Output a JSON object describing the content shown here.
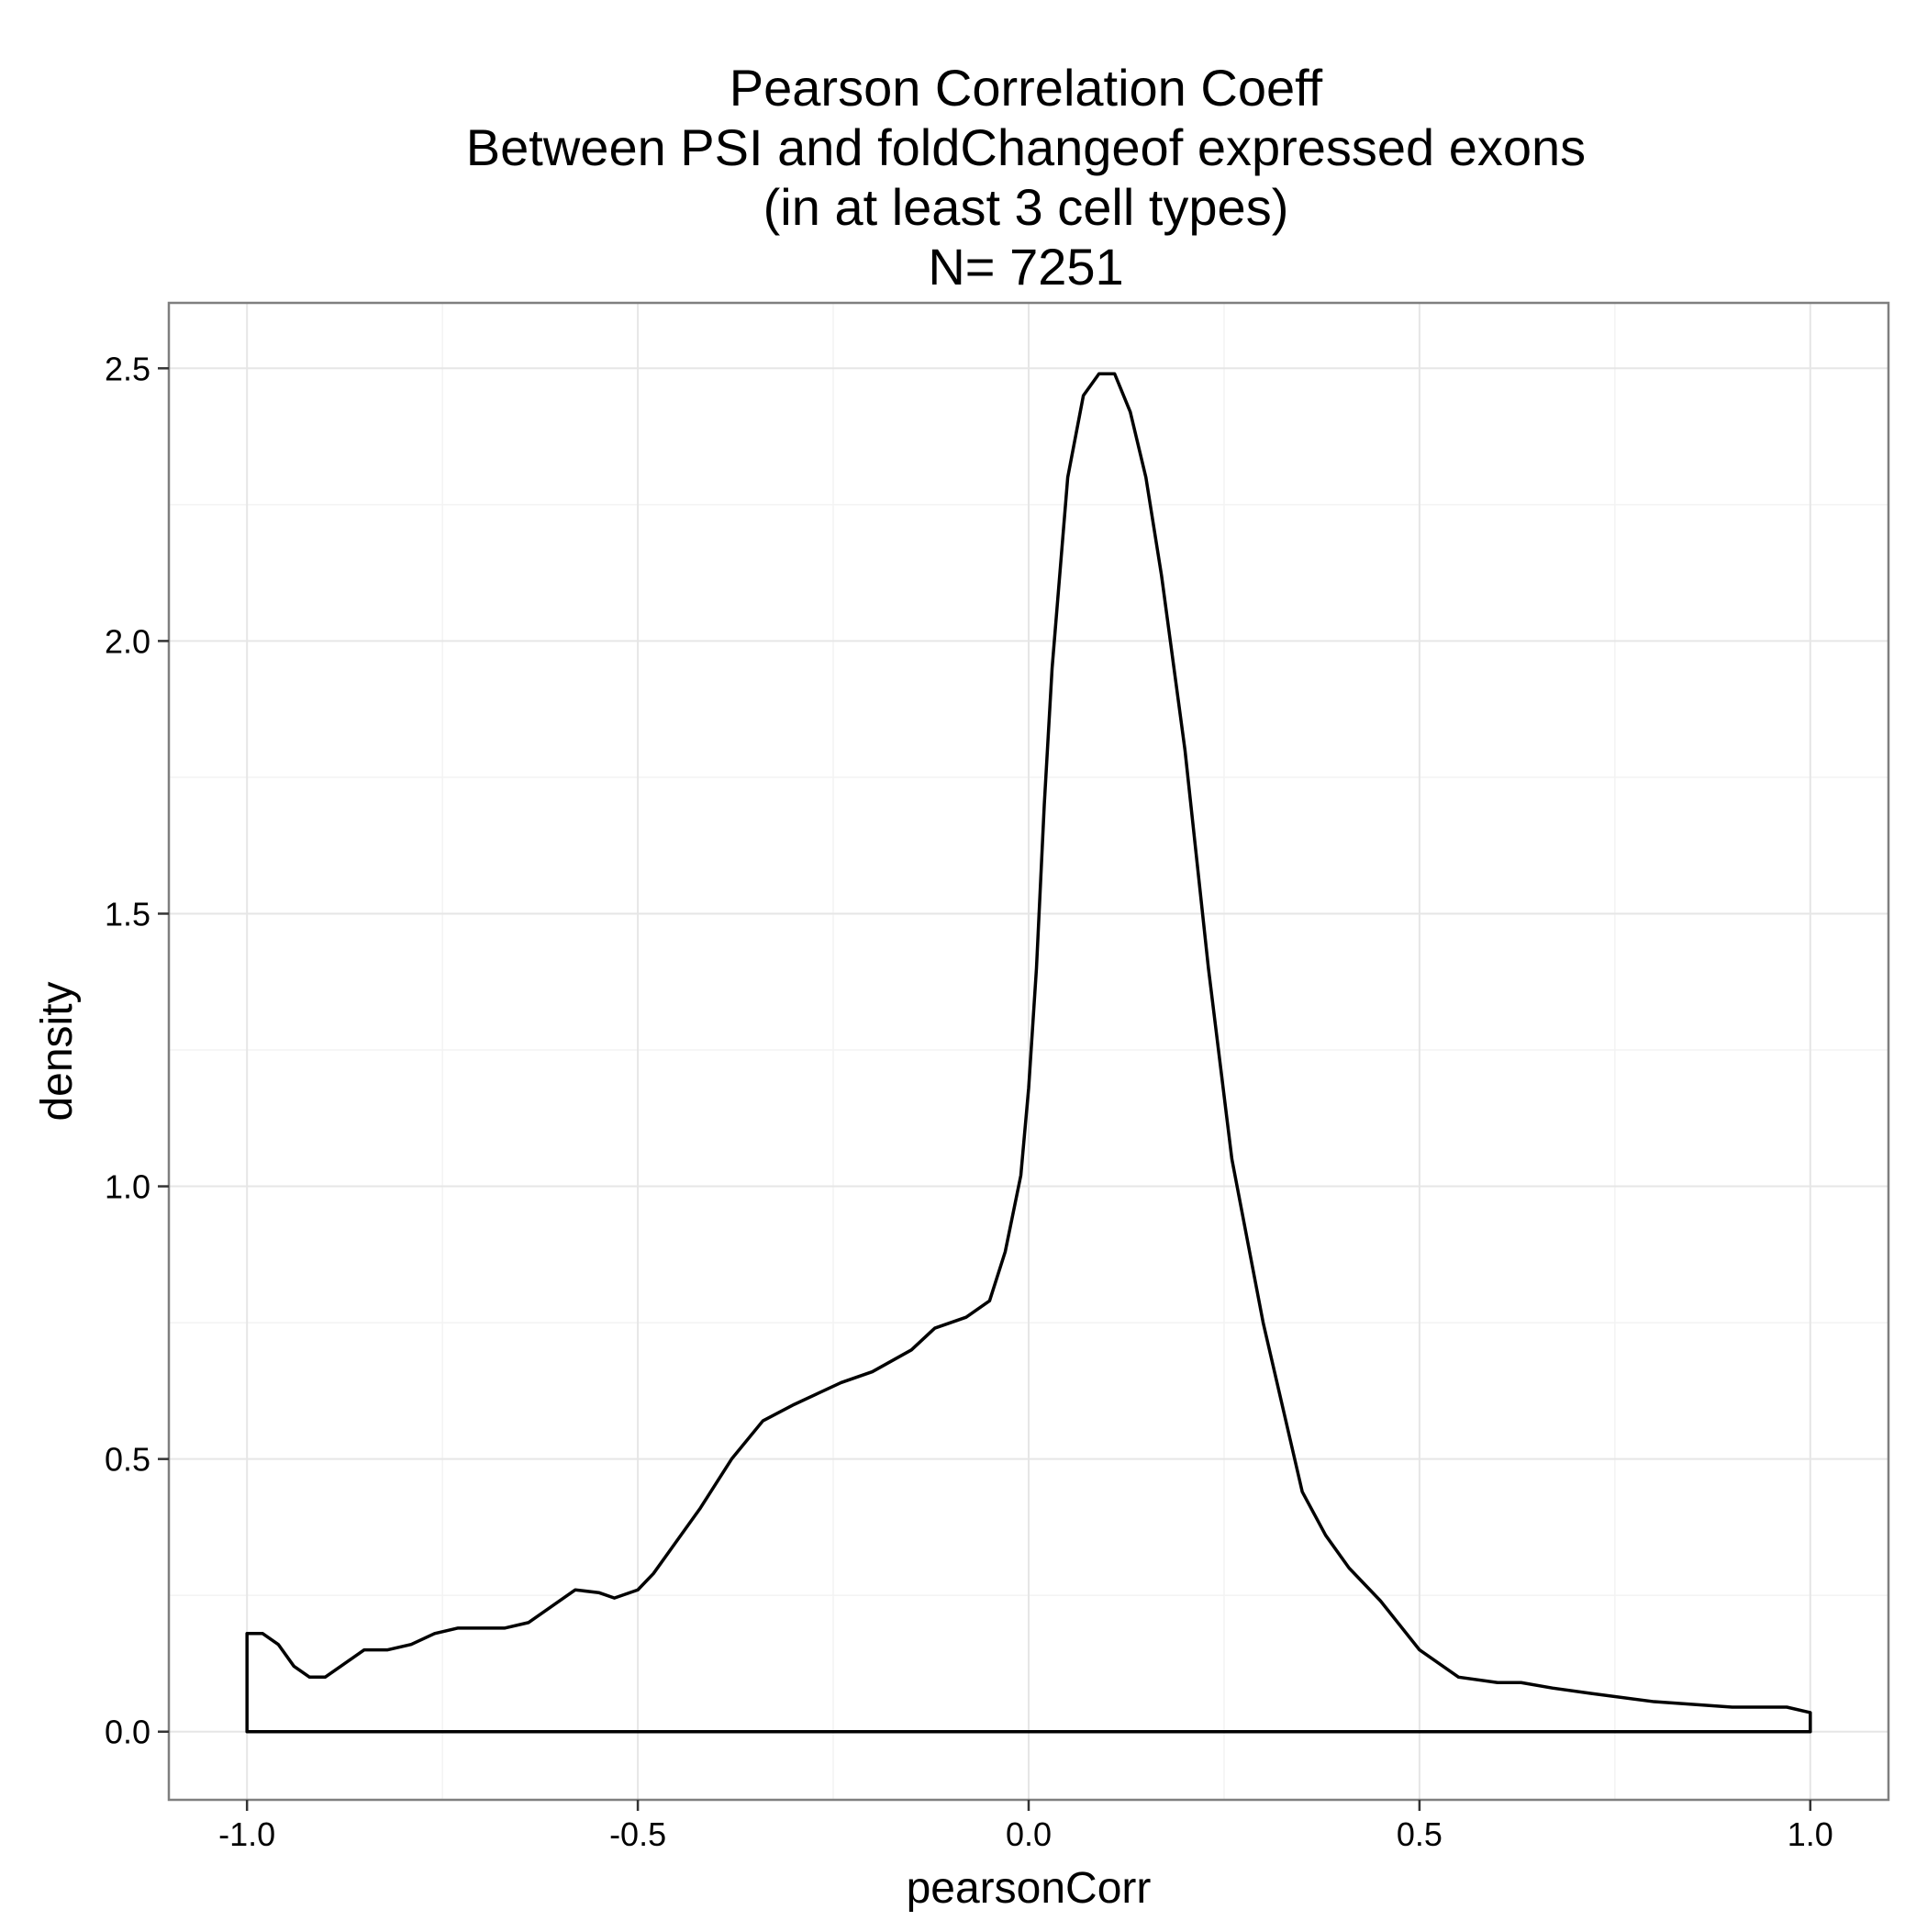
{
  "chart_data": {
    "type": "area",
    "title_lines": [
      "Pearson Correlation Coeff",
      "Between PSI and foldChangeof expressed exons",
      "(in at least 3 cell types)",
      "N= 7251"
    ],
    "xlabel": "pearsonCorr",
    "ylabel": "density",
    "xlim": [
      -1.1,
      1.1
    ],
    "ylim": [
      -0.125,
      2.62
    ],
    "x_ticks": [
      -1.0,
      -0.5,
      0.0,
      0.5,
      1.0
    ],
    "x_tick_labels": [
      "-1.0",
      "-0.5",
      "0.0",
      "0.5",
      "1.0"
    ],
    "y_ticks": [
      0.0,
      0.5,
      1.0,
      1.5,
      2.0,
      2.5
    ],
    "y_tick_labels": [
      "0.0",
      "0.5",
      "1.0",
      "1.5",
      "2.0",
      "2.5"
    ],
    "grid": true,
    "fill": "none",
    "line_color": "#000000",
    "series": [
      {
        "x": [
          -1.0,
          -0.98,
          -0.96,
          -0.94,
          -0.92,
          -0.9,
          -0.88,
          -0.85,
          -0.82,
          -0.79,
          -0.76,
          -0.73,
          -0.7,
          -0.67,
          -0.64,
          -0.61,
          -0.58,
          -0.55,
          -0.53,
          -0.5,
          -0.48,
          -0.45,
          -0.42,
          -0.38,
          -0.34,
          -0.3,
          -0.27,
          -0.24,
          -0.2,
          -0.15,
          -0.12,
          -0.08,
          -0.05,
          -0.03,
          -0.01,
          0.0,
          0.01,
          0.02,
          0.03,
          0.05,
          0.07,
          0.09,
          0.11,
          0.13,
          0.15,
          0.17,
          0.2,
          0.23,
          0.26,
          0.3,
          0.35,
          0.38,
          0.41,
          0.45,
          0.5,
          0.55,
          0.6,
          0.63,
          0.67,
          0.72,
          0.8,
          0.9,
          0.97,
          1.0
        ],
        "y": [
          0.18,
          0.18,
          0.16,
          0.12,
          0.1,
          0.1,
          0.12,
          0.15,
          0.15,
          0.16,
          0.18,
          0.19,
          0.19,
          0.19,
          0.2,
          0.23,
          0.26,
          0.255,
          0.245,
          0.26,
          0.29,
          0.35,
          0.41,
          0.5,
          0.57,
          0.6,
          0.62,
          0.64,
          0.66,
          0.7,
          0.74,
          0.76,
          0.79,
          0.88,
          1.02,
          1.18,
          1.4,
          1.7,
          1.95,
          2.3,
          2.45,
          2.49,
          2.49,
          2.42,
          2.3,
          2.12,
          1.8,
          1.4,
          1.05,
          0.75,
          0.44,
          0.36,
          0.3,
          0.24,
          0.15,
          0.1,
          0.09,
          0.09,
          0.08,
          0.07,
          0.055,
          0.045,
          0.045,
          0.035
        ]
      }
    ]
  }
}
